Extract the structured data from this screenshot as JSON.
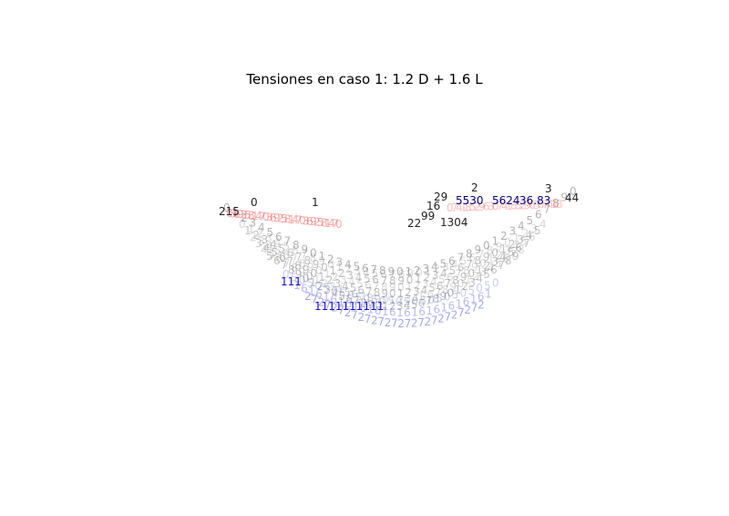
{
  "chart_data": {
    "type": "scatter",
    "title": "Tensiones en caso 1: 1.2 D + 1.6 L",
    "xlabel": "",
    "ylabel": "",
    "axes_visible": false,
    "grid": false,
    "colors": {
      "tension": "#ff4444",
      "neutral": "#222222",
      "compression": "#1111cc"
    },
    "labels": [
      {
        "text": "5530",
        "color": "#000080"
      },
      {
        "text": "5624",
        "color": "#000080"
      },
      {
        "text": "36.83",
        "color": "#000080"
      },
      {
        "text": "29",
        "color": "#222222"
      },
      {
        "text": "44",
        "color": "#222222"
      },
      {
        "text": "2",
        "color": "#222222"
      },
      {
        "text": "3",
        "color": "#222222"
      },
      {
        "text": "0",
        "color": "#222222"
      },
      {
        "text": "1",
        "color": "#222222"
      },
      {
        "text": "215",
        "color": "#222222"
      },
      {
        "text": "16",
        "color": "#222222"
      },
      {
        "text": "99",
        "color": "#222222"
      },
      {
        "text": "22",
        "color": "#222222"
      },
      {
        "text": "1304",
        "color": "#222222"
      },
      {
        "text": "111",
        "color": "#1111cc"
      },
      {
        "text": "1111111111",
        "color": "#1111cc"
      }
    ]
  }
}
